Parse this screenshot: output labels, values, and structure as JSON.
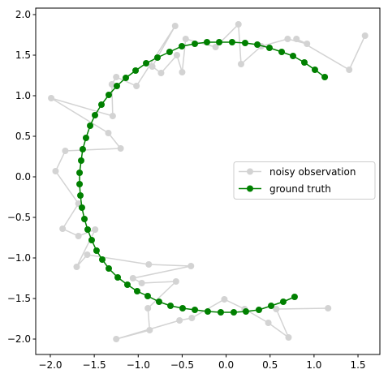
{
  "chart_data": {
    "type": "line",
    "xlim": [
      -2.166,
      1.749
    ],
    "ylim": [
      -2.19,
      2.08
    ],
    "xticks": [
      {
        "value": -2.0,
        "label": "−2.0"
      },
      {
        "value": -1.5,
        "label": "−1.5"
      },
      {
        "value": -1.0,
        "label": "−1.0"
      },
      {
        "value": -0.5,
        "label": "−0.5"
      },
      {
        "value": 0.0,
        "label": "0.0"
      },
      {
        "value": 0.5,
        "label": "0.5"
      },
      {
        "value": 1.0,
        "label": "1.0"
      },
      {
        "value": 1.5,
        "label": "1.5"
      }
    ],
    "yticks": [
      {
        "value": -2.0,
        "label": "−2.0"
      },
      {
        "value": -1.5,
        "label": "−1.5"
      },
      {
        "value": -1.0,
        "label": "−1.0"
      },
      {
        "value": -0.5,
        "label": "−0.5"
      },
      {
        "value": 0.0,
        "label": "0.0"
      },
      {
        "value": 0.5,
        "label": "0.5"
      },
      {
        "value": 1.0,
        "label": "1.0"
      },
      {
        "value": 1.5,
        "label": "1.5"
      },
      {
        "value": 2.0,
        "label": "2.0"
      }
    ],
    "legend": "center right",
    "series": [
      {
        "name": "noisy observation",
        "color": "#d3d3d3",
        "x": [
          1.58,
          1.4,
          0.8,
          0.92,
          0.7,
          0.4,
          0.17,
          0.14,
          -0.12,
          -0.46,
          -0.5,
          -0.56,
          -0.74,
          -0.84,
          -0.58,
          -1.02,
          -1.25,
          -1.3,
          -1.29,
          -1.99,
          -1.34,
          -1.2,
          -1.83,
          -1.94,
          -1.68,
          -1.86,
          -1.68,
          -1.49,
          -1.7,
          -1.58,
          -0.88,
          -0.4,
          -1.06,
          -0.96,
          -0.57,
          -0.89,
          -0.87,
          -1.25,
          -0.53,
          -0.39,
          -0.02,
          0.21,
          0.48,
          0.71,
          0.57,
          1.16
        ],
        "values": [
          1.74,
          1.32,
          1.7,
          1.64,
          1.7,
          1.61,
          1.39,
          1.88,
          1.6,
          1.7,
          1.29,
          1.5,
          1.28,
          1.36,
          1.86,
          1.12,
          1.23,
          1.14,
          0.75,
          0.97,
          0.54,
          0.35,
          0.32,
          0.07,
          -0.33,
          -0.64,
          -0.73,
          -0.65,
          -1.11,
          -0.96,
          -1.08,
          -1.1,
          -1.25,
          -1.31,
          -1.29,
          -1.62,
          -1.89,
          -2.0,
          -1.77,
          -1.74,
          -1.51,
          -1.63,
          -1.8,
          -1.98,
          -1.63,
          -1.62
        ]
      },
      {
        "name": "ground truth",
        "color": "#008000",
        "x": [
          1.122,
          1.01,
          0.89,
          0.761,
          0.632,
          0.493,
          0.355,
          0.216,
          0.068,
          -0.079,
          -0.218,
          -0.356,
          -0.504,
          -0.643,
          -0.781,
          -0.91,
          -1.03,
          -1.141,
          -1.243,
          -1.335,
          -1.418,
          -1.492,
          -1.547,
          -1.594,
          -1.631,
          -1.649,
          -1.667,
          -1.667,
          -1.658,
          -1.64,
          -1.612,
          -1.575,
          -1.529,
          -1.474,
          -1.409,
          -1.335,
          -1.233,
          -1.123,
          -1.012,
          -0.892,
          -0.763,
          -0.633,
          -0.495,
          -0.356,
          -0.209,
          -0.061,
          0.087,
          0.225,
          0.373,
          0.512,
          0.65,
          0.779
        ],
        "values": [
          1.23,
          1.32,
          1.41,
          1.49,
          1.54,
          1.59,
          1.63,
          1.65,
          1.66,
          1.66,
          1.66,
          1.64,
          1.61,
          1.54,
          1.47,
          1.4,
          1.31,
          1.22,
          1.12,
          1.01,
          0.89,
          0.76,
          0.63,
          0.48,
          0.34,
          0.2,
          0.05,
          -0.09,
          -0.23,
          -0.38,
          -0.52,
          -0.65,
          -0.78,
          -0.91,
          -1.02,
          -1.13,
          -1.24,
          -1.33,
          -1.41,
          -1.47,
          -1.54,
          -1.59,
          -1.62,
          -1.64,
          -1.66,
          -1.67,
          -1.67,
          -1.66,
          -1.64,
          -1.59,
          -1.54,
          -1.48
        ]
      }
    ]
  }
}
